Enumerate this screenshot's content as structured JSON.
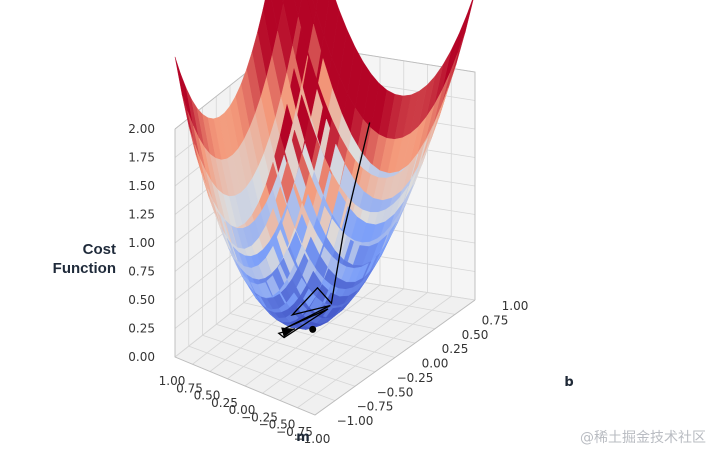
{
  "chart_data": {
    "type": "surface3d",
    "title": "",
    "z_label_lines": [
      "Cost",
      "Function"
    ],
    "x_label": "m",
    "y_label": "b",
    "x_ticks": [
      "1.00",
      "0.75",
      "0.50",
      "0.25",
      "0.00",
      "−0.25",
      "−0.50",
      "−0.75",
      "−1.00"
    ],
    "y_ticks": [
      "−1.00",
      "−0.75",
      "−0.50",
      "−0.25",
      "0.00",
      "0.25",
      "0.50",
      "0.75",
      "1.00"
    ],
    "z_ticks": [
      "0.00",
      "0.25",
      "0.50",
      "0.75",
      "1.00",
      "1.25",
      "1.50",
      "1.75",
      "2.00"
    ],
    "xlim": [
      -1,
      1
    ],
    "ylim": [
      -1,
      1
    ],
    "zlim": [
      0,
      2
    ],
    "colormap": "coolwarm",
    "grid": true,
    "descent_path": [
      {
        "m": -0.62,
        "b": 0.08,
        "z": 1.95
      },
      {
        "m": -0.35,
        "b": 0.03,
        "z": 0.96
      },
      {
        "m": -0.22,
        "b": 0.01,
        "z": 0.32
      },
      {
        "m": -0.02,
        "b": 0.05,
        "z": 0.4
      },
      {
        "m": 0.1,
        "b": -0.18,
        "z": 0.24
      },
      {
        "m": -0.1,
        "b": 0.14,
        "z": 0.22
      },
      {
        "m": 0.14,
        "b": -0.24,
        "z": 0.14
      },
      {
        "m": -0.04,
        "b": 0.18,
        "z": 0.16
      },
      {
        "m": 0.12,
        "b": -0.28,
        "z": 0.08
      },
      {
        "m": 0.22,
        "b": -0.24,
        "z": 0.08
      },
      {
        "m": 0.18,
        "b": -0.04,
        "z": 0.04
      }
    ],
    "minimum_point": {
      "m": 0.03,
      "b": 0.04,
      "z": 0.03
    }
  },
  "watermark": "@稀土掘金技术社区"
}
